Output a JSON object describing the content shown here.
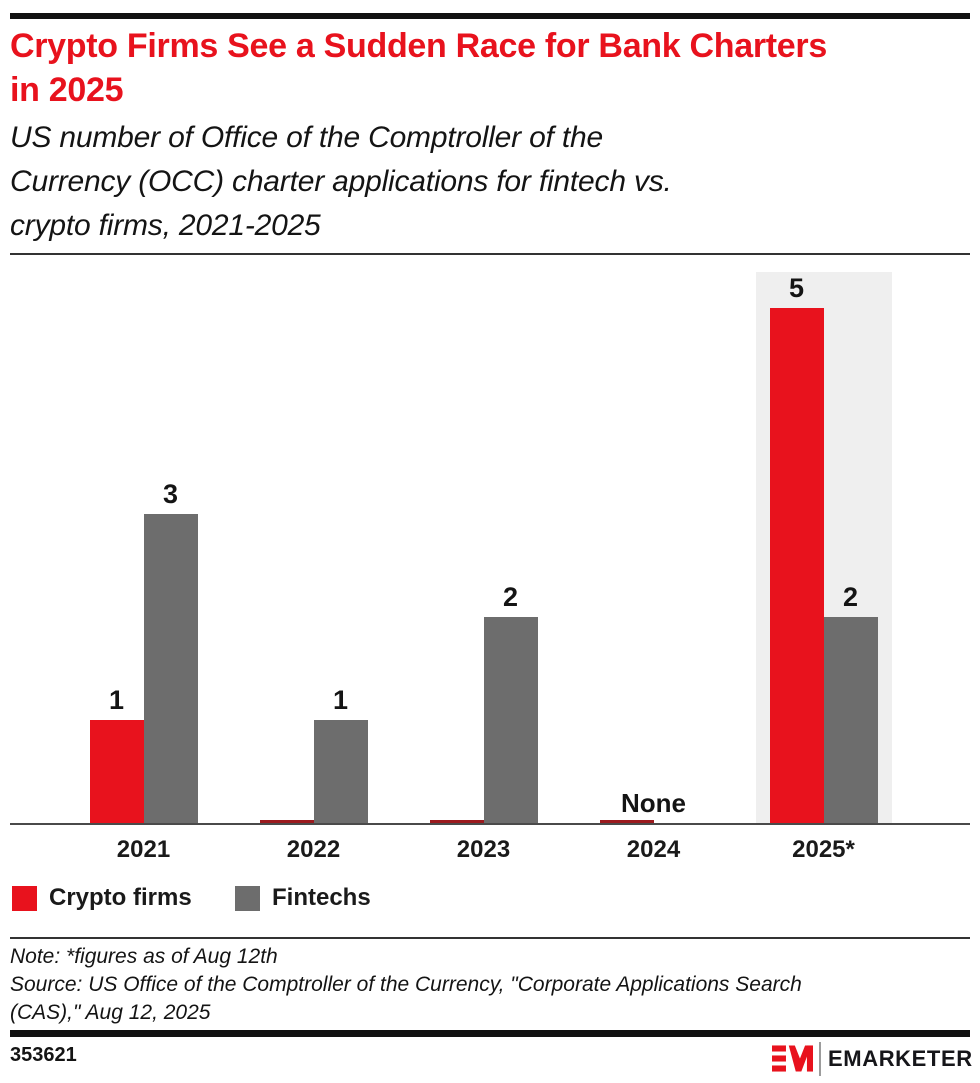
{
  "header": {
    "title": "Crypto Firms See a Sudden Race for Bank Charters in 2025",
    "title_lines": [
      "Crypto Firms See a Sudden Race for Bank Charters",
      "in 2025"
    ],
    "subtitle": "US number of Office of the Comptroller of the Currency (OCC) charter applications for fintech vs. crypto firms, 2021-2025",
    "subtitle_lines": [
      "US number of Office of the Comptroller of the",
      "Currency (OCC) charter applications for fintech vs.",
      "crypto firms, 2021-2025"
    ],
    "title_color": "#e8121d"
  },
  "chart_data": {
    "type": "bar",
    "categories": [
      "2021",
      "2022",
      "2023",
      "2024",
      "2025*"
    ],
    "series": [
      {
        "name": "Crypto firms",
        "color": "#e8121d",
        "values": [
          1,
          0,
          0,
          0,
          5
        ]
      },
      {
        "name": "Fintechs",
        "color": "#6d6d6d",
        "values": [
          3,
          1,
          2,
          0,
          2
        ]
      }
    ],
    "annotations": [
      {
        "category": "2024",
        "text": "None"
      }
    ],
    "highlight_category": "2025*",
    "highlight_color": "#efefef",
    "value_labels": true,
    "ylim": [
      0,
      5
    ],
    "grid": false,
    "legend_position": "bottom-left"
  },
  "footer": {
    "note": "Note: *figures as of Aug 12th",
    "source": "Source: US Office of the Comptroller of the Currency, \"Corporate Applications Search (CAS),\" Aug 12, 2025",
    "note_lines": [
      "Note: *figures as of Aug 12th",
      "Source: US Office of the Comptroller of the Currency, \"Corporate Applications Search",
      "(CAS),\" Aug 12, 2025"
    ],
    "chart_id": "353621",
    "brand": "EMARKETER"
  }
}
